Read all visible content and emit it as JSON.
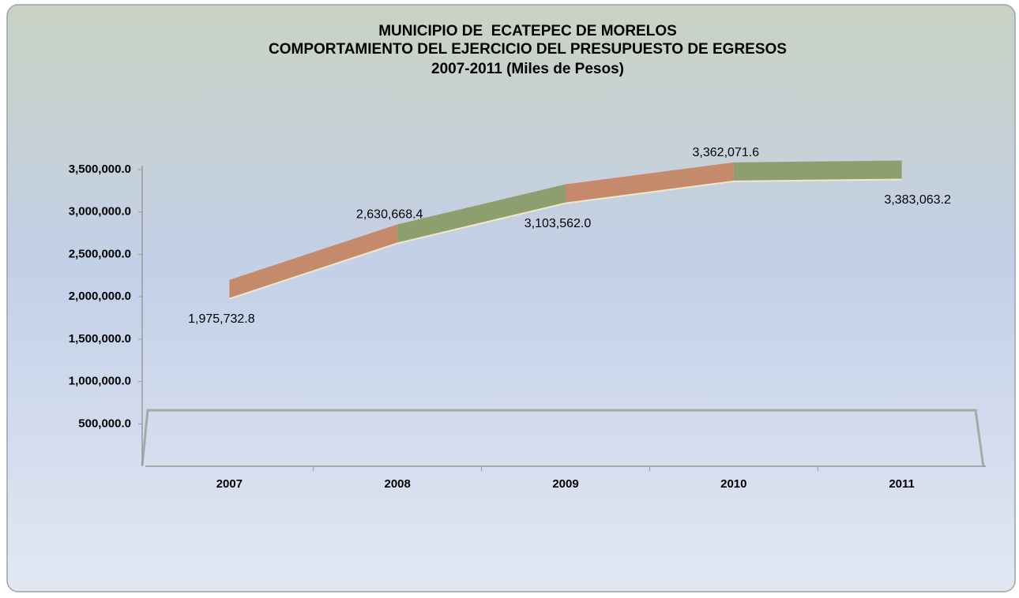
{
  "chart_data": {
    "type": "line3d",
    "title": [
      "MUNICIPIO DE  ECATEPEC DE MORELOS",
      "COMPORTAMIENTO DEL EJERCICIO DEL PRESUPUESTO DE EGRESOS",
      "2007-2011 (Miles de Pesos)"
    ],
    "categories": [
      "2007",
      "2008",
      "2009",
      "2010",
      "2011"
    ],
    "values": [
      1975732.8,
      2630668.4,
      3103562.0,
      3362071.6,
      3383063.2
    ],
    "value_labels": [
      "1,975,732.8",
      "2,630,668.4",
      "3,103,562.0",
      "3,362,071.6",
      "3,383,063.2"
    ],
    "colors": [
      "#c48a6b",
      "#8e9f6f"
    ],
    "ylim": [
      0,
      3500000
    ],
    "yticks": [
      {
        "value": 500000,
        "label": "500,000.0"
      },
      {
        "value": 1000000,
        "label": "1,000,000.0"
      },
      {
        "value": 1500000,
        "label": "1,500,000.0"
      },
      {
        "value": 2000000,
        "label": "2,000,000.0"
      },
      {
        "value": 2500000,
        "label": "2,500,000.0"
      },
      {
        "value": 3000000,
        "label": "3,000,000.0"
      },
      {
        "value": 3500000,
        "label": "3,500,000.0"
      }
    ]
  }
}
